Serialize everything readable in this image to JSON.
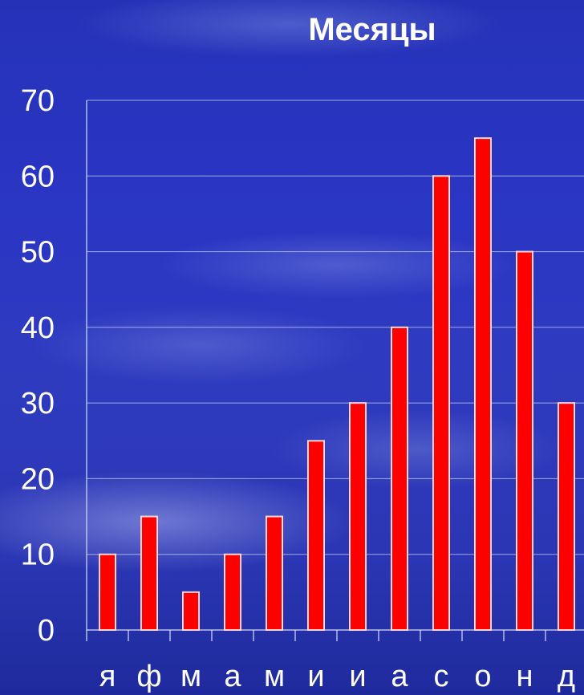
{
  "chart_data": {
    "type": "bar",
    "title": "Месяцы",
    "xlabel": "",
    "ylabel": "",
    "categories": [
      "я",
      "ф",
      "м",
      "а",
      "м",
      "и",
      "и",
      "а",
      "с",
      "о",
      "н",
      "д"
    ],
    "values": [
      10,
      15,
      5,
      10,
      15,
      25,
      30,
      40,
      60,
      65,
      50,
      30
    ],
    "ylim": [
      0,
      70
    ],
    "yticks": [
      0,
      10,
      20,
      30,
      40,
      50,
      60,
      70
    ],
    "grid": true,
    "legend": "none",
    "colors": {
      "bar": "#ff0000",
      "bar_edge": "#ffd6d6",
      "text": "#ffffff"
    }
  }
}
